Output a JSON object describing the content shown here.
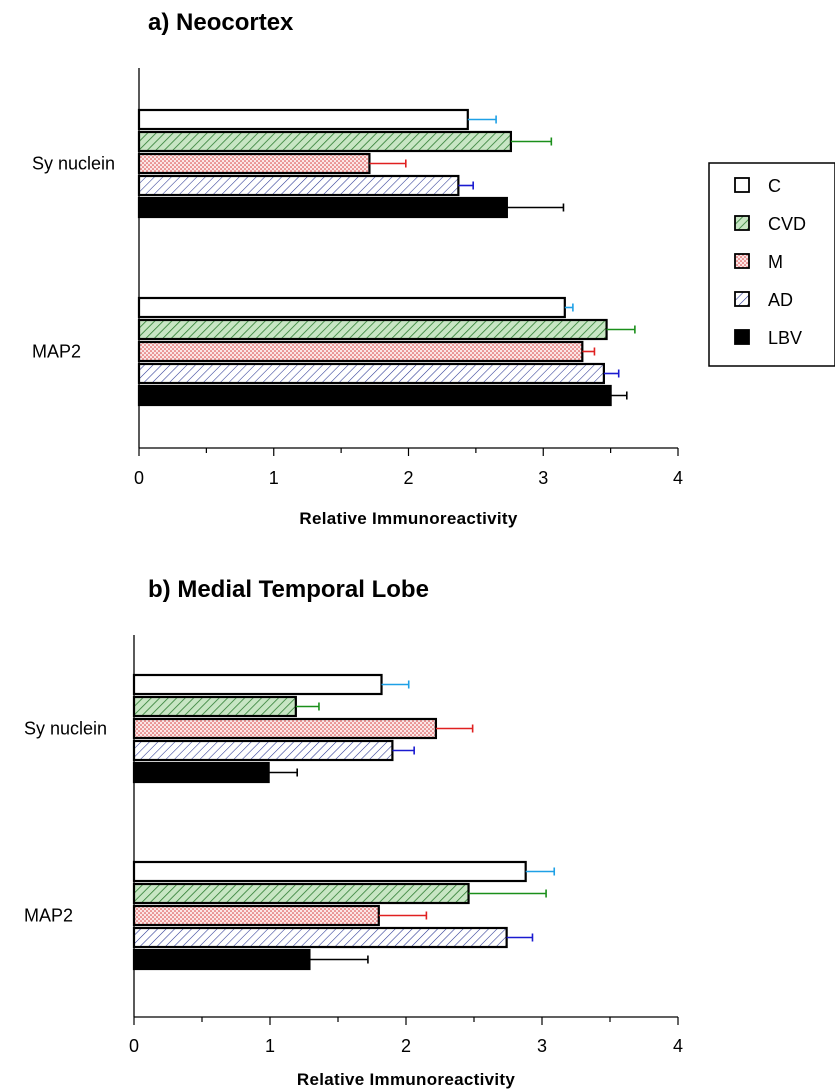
{
  "chart_data": [
    {
      "type": "bar",
      "orientation": "horizontal",
      "title": "a) Neocortex",
      "xlabel": "Relative Immunoreactivity",
      "ylabel": "",
      "xlim": [
        0,
        4
      ],
      "xticks": [
        "0",
        "1",
        "2",
        "3",
        "4"
      ],
      "categories": [
        "Sy nuclein",
        "MAP2"
      ],
      "series": [
        {
          "name": "C",
          "values": [
            2.44,
            3.16
          ],
          "errors": [
            0.21,
            0.06
          ]
        },
        {
          "name": "CVD",
          "values": [
            2.76,
            3.47
          ],
          "errors": [
            0.3,
            0.21
          ]
        },
        {
          "name": "M",
          "values": [
            1.71,
            3.29
          ],
          "errors": [
            0.27,
            0.09
          ]
        },
        {
          "name": "AD",
          "values": [
            2.37,
            3.45
          ],
          "errors": [
            0.11,
            0.11
          ]
        },
        {
          "name": "LBV",
          "values": [
            2.73,
            3.5
          ],
          "errors": [
            0.42,
            0.12
          ]
        }
      ],
      "grid": false,
      "legend": "right"
    },
    {
      "type": "bar",
      "orientation": "horizontal",
      "title": "b) Medial Temporal Lobe",
      "xlabel": "Relative Immunoreactivity",
      "ylabel": "",
      "xlim": [
        0,
        4
      ],
      "xticks": [
        "0",
        "1",
        "2",
        "3",
        "4"
      ],
      "categories": [
        "Sy nuclein",
        "MAP2"
      ],
      "series": [
        {
          "name": "C",
          "values": [
            1.82,
            2.88
          ],
          "errors": [
            0.2,
            0.21
          ]
        },
        {
          "name": "CVD",
          "values": [
            1.19,
            2.46
          ],
          "errors": [
            0.17,
            0.57
          ]
        },
        {
          "name": "M",
          "values": [
            2.22,
            1.8
          ],
          "errors": [
            0.27,
            0.35
          ]
        },
        {
          "name": "AD",
          "values": [
            1.9,
            2.74
          ],
          "errors": [
            0.16,
            0.19
          ]
        },
        {
          "name": "LBV",
          "values": [
            0.99,
            1.29
          ],
          "errors": [
            0.21,
            0.43
          ]
        }
      ],
      "grid": false,
      "legend": "none"
    }
  ],
  "legend": {
    "entries": [
      "C",
      "CVD",
      "M",
      "AD",
      "LBV"
    ]
  },
  "styles": {
    "series_fills": [
      "#ffffff",
      "#c8e6c4",
      "#fbe6e6",
      "#e6e8fb",
      "#000000"
    ],
    "series_patterns": [
      "none",
      "diagonal",
      "dots",
      "diagonal",
      "none"
    ],
    "pattern_colors": [
      "",
      "#2e7d32",
      "#d32f2f",
      "#283593",
      ""
    ],
    "error_colors": [
      "#1ea0e6",
      "#1a8f1a",
      "#e02020",
      "#1a1ad0",
      "#000000"
    ]
  }
}
